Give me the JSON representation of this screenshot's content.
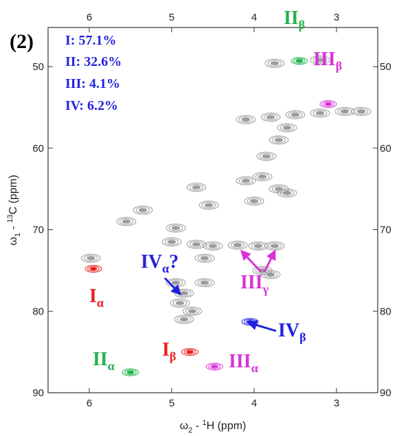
{
  "chart_data": {
    "type": "scatter",
    "panel_label": "(2)",
    "inset_lines": [
      "I:   57.1%",
      "II:  32.6%",
      "III:  4.1%",
      "IV:   6.2%"
    ],
    "xlabel": [
      "ω",
      "2",
      " - ",
      "1",
      "H  (ppm)"
    ],
    "ylabel": [
      "ω",
      "1",
      " - ",
      "13",
      "C  (ppm)"
    ],
    "xlim": [
      6.5,
      2.5
    ],
    "ylim": [
      45.2,
      90
    ],
    "xticks": [
      6,
      5,
      4,
      3
    ],
    "yticks": [
      50,
      60,
      70,
      80,
      90
    ],
    "series": [
      {
        "color": "#8a8a8a",
        "x": [
          3.75,
          3.2,
          4.1,
          3.8,
          3.5,
          3.2,
          2.9,
          2.7,
          3.6,
          3.7,
          3.85,
          4.1,
          3.9,
          3.7,
          3.6,
          4.0,
          4.7,
          5.35,
          5.55,
          4.95,
          4.55,
          5.0,
          4.7,
          4.5,
          4.6,
          4.2,
          3.95,
          3.75,
          3.9,
          3.8,
          5.98,
          4.95,
          4.85,
          4.9,
          4.75,
          4.85,
          4.6
        ],
        "y": [
          49.6,
          49.2,
          56.5,
          56.2,
          55.9,
          55.7,
          55.5,
          55.5,
          57.5,
          59,
          61,
          64,
          63.5,
          65,
          65.5,
          66.5,
          64.8,
          67.6,
          69,
          69.8,
          67,
          71.5,
          71.8,
          72,
          73.5,
          71.9,
          72,
          72,
          75,
          75.5,
          73.5,
          76.5,
          77.8,
          79,
          80,
          81,
          76.5
        ]
      },
      {
        "color": "#e8201c",
        "x": [
          5.95,
          4.78
        ],
        "y": [
          74.8,
          85.0
        ]
      },
      {
        "color": "#22b14c",
        "x": [
          5.5,
          3.45
        ],
        "y": [
          87.5,
          49.3
        ]
      },
      {
        "color": "#d633d6",
        "x": [
          4.48,
          3.1
        ],
        "y": [
          86.8,
          54.6
        ]
      },
      {
        "color": "#2222dd",
        "x": [
          4.05
        ],
        "y": [
          81.3
        ]
      }
    ],
    "annotations": [
      {
        "main": "I",
        "sub": "α",
        "color": "#e8201c"
      },
      {
        "main": "I",
        "sub": "β",
        "color": "#e8201c"
      },
      {
        "main": "II",
        "sub": "α",
        "color": "#22b14c"
      },
      {
        "main": "II",
        "sub": "β",
        "color": "#22b14c"
      },
      {
        "main": "III",
        "sub": "α",
        "color": "#d633d6"
      },
      {
        "main": "III",
        "sub": "β",
        "color": "#d633d6"
      },
      {
        "main": "III",
        "sub": "γ",
        "color": "#d633d6"
      },
      {
        "main": "IV",
        "sub": "β",
        "color": "#2222dd"
      },
      {
        "main": "IV",
        "sub": "α",
        "tail": "?",
        "color": "#2222dd"
      }
    ]
  }
}
